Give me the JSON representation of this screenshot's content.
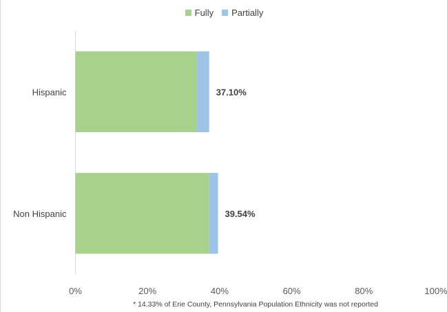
{
  "chart_data": {
    "type": "bar",
    "orientation": "horizontal",
    "stacked": true,
    "categories": [
      "Hispanic",
      "Non Hispanic"
    ],
    "series": [
      {
        "name": "Fully",
        "values": [
          33.6,
          37.0
        ],
        "color": "#a9d18e"
      },
      {
        "name": "Partially",
        "values": [
          3.5,
          2.54
        ],
        "color": "#9dc3e6"
      }
    ],
    "totals": [
      "37.10%",
      "39.54%"
    ],
    "xlim": [
      0,
      100
    ],
    "xticks": [
      0,
      20,
      40,
      60,
      80,
      100
    ],
    "xtick_labels": [
      "0%",
      "20%",
      "40%",
      "60%",
      "80%",
      "100%"
    ],
    "grid": false,
    "legend_position": "top",
    "footnote": "* 14.33% of Erie County, Pennsylvania Population Ethnicity was not reported"
  }
}
